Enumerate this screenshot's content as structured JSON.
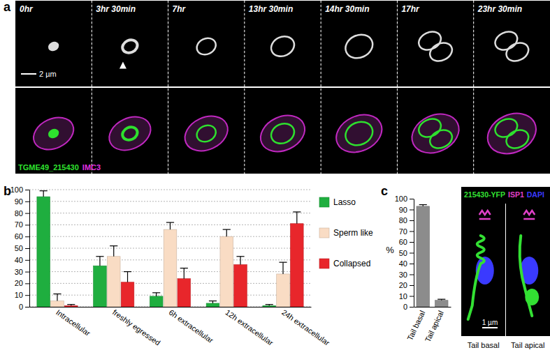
{
  "panel_labels": [
    "a",
    "b",
    "c"
  ],
  "image_panels": [
    {
      "frames": [
        "0hr",
        "3hr 30min",
        "7hr",
        "13hr 30min",
        "14hr 30min",
        "17hr",
        "23hr 30min"
      ],
      "channels": [
        {
          "name": "TGME49_215430",
          "color": "#2ee02e"
        },
        {
          "name": "IMC3",
          "color": "#e22fe2"
        }
      ],
      "scale_bar": "2 µm"
    },
    {
      "channels": [
        {
          "name": "215430-YFP",
          "color": "#33e033"
        },
        {
          "name": "ISP1",
          "color": "#e040c8"
        },
        {
          "name": "DAPI",
          "color": "#3a3aff"
        }
      ],
      "captions": [
        "Tail basal",
        "Tail apical"
      ],
      "scale_bar": "1 µm"
    }
  ],
  "chart_data": [
    {
      "type": "bar",
      "categories": [
        "Intracellular",
        "freshly egressed",
        "6h extracellular",
        "12h extracellular",
        "24h extracellular"
      ],
      "series": [
        {
          "name": "Lasso",
          "color": "#1fae3f",
          "values": [
            94,
            35,
            9,
            3,
            1
          ],
          "errors": [
            5,
            8,
            3,
            2,
            1
          ]
        },
        {
          "name": "Sperm like",
          "color": "#f9dcc4",
          "values": [
            5,
            43,
            66,
            60,
            28
          ],
          "errors": [
            6,
            9,
            6,
            6,
            10
          ]
        },
        {
          "name": "Collapsed",
          "color": "#e8262b",
          "values": [
            1,
            21,
            24,
            36,
            71
          ],
          "errors": [
            1,
            9,
            9,
            7,
            10
          ]
        }
      ],
      "ylim": [
        0,
        100
      ],
      "yticks": [
        0,
        10,
        20,
        30,
        40,
        50,
        60,
        70,
        80,
        90,
        100
      ],
      "grid": true,
      "legend": "right"
    },
    {
      "type": "bar",
      "categories": [
        "Tail basal",
        "Tail apical"
      ],
      "values": [
        93,
        6
      ],
      "errors": [
        1.5,
        1
      ],
      "color": "#8c8c8c",
      "ylabel": "%",
      "ylim": [
        0,
        100
      ],
      "yticks": [
        0,
        10,
        20,
        30,
        40,
        50,
        60,
        70,
        80,
        90,
        100
      ],
      "grid": false
    }
  ]
}
